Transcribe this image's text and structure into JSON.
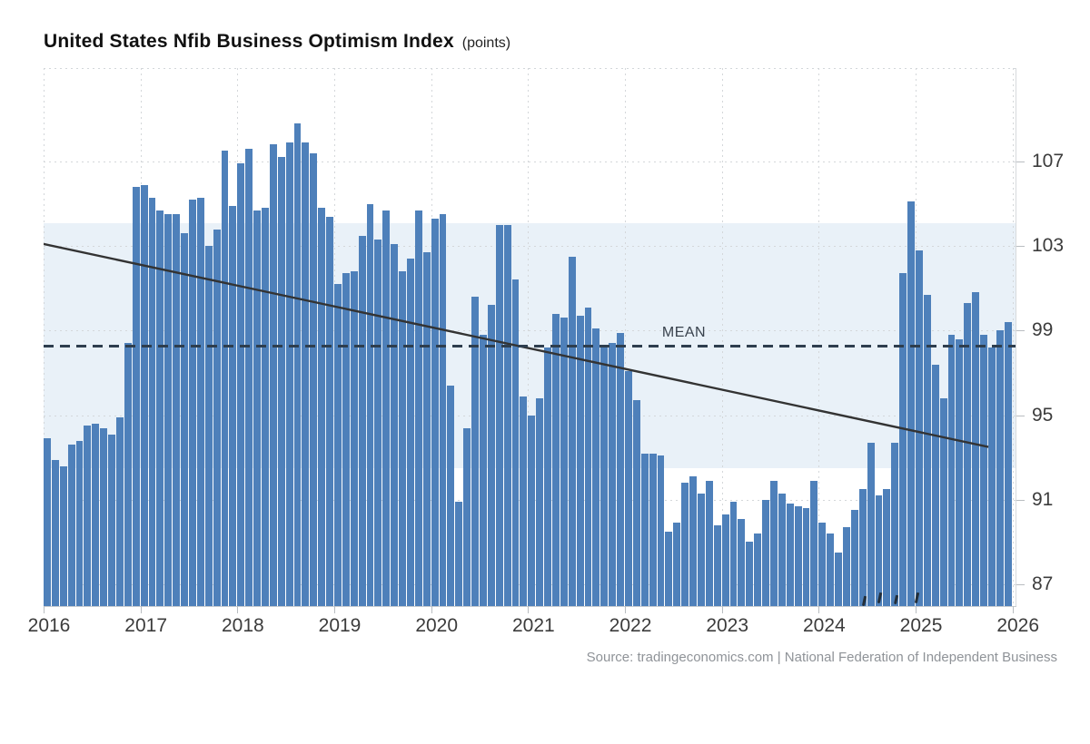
{
  "title": {
    "main": "United States Nfib Business Optimism Index",
    "unit": "(points)"
  },
  "source": "Source: tradingeconomics.com | National Federation of Independent Business",
  "mean_label": "MEAN",
  "colors": {
    "bar": "#4e80ba",
    "band": "#e9f1f8",
    "mean_line": "#2e3e4e",
    "trend_line": "#333333",
    "grid": "#d4d7da",
    "axis_text": "#3c3c3c",
    "title_text": "#111111",
    "source_text": "#8f9398"
  },
  "chart_data": {
    "type": "bar",
    "title": "United States Nfib Business Optimism Index (points)",
    "xlabel": "",
    "ylabel": "points",
    "frequency": "monthly",
    "start": "2016-01",
    "end": "2025-12",
    "ylim": [
      85.97,
      111.42
    ],
    "y_ticks": [
      107,
      103,
      99,
      95,
      91,
      87
    ],
    "x_tick_labels": [
      "2016",
      "2017",
      "2018",
      "2019",
      "2020",
      "2021",
      "2022",
      "2023",
      "2024",
      "2025",
      "2026"
    ],
    "grid": "dotted",
    "legend_position": "none",
    "mean": 98.3,
    "band": {
      "top": 104.1,
      "bottom": 92.5
    },
    "trend_line": {
      "start_month_index": 0,
      "start_value": 103.1,
      "end_month_index": 117,
      "end_value": 93.5
    },
    "values": [
      93.9,
      92.9,
      92.6,
      93.6,
      93.8,
      94.5,
      94.6,
      94.4,
      94.1,
      94.9,
      98.4,
      105.8,
      105.9,
      105.3,
      104.7,
      104.5,
      104.5,
      103.6,
      105.2,
      105.3,
      103.0,
      103.8,
      107.5,
      104.9,
      106.9,
      107.6,
      104.7,
      104.8,
      107.8,
      107.2,
      107.9,
      108.8,
      107.9,
      107.4,
      104.8,
      104.4,
      101.2,
      101.7,
      101.8,
      103.5,
      105.0,
      103.3,
      104.7,
      103.1,
      101.8,
      102.4,
      104.7,
      102.7,
      104.3,
      104.5,
      96.4,
      90.9,
      94.4,
      100.6,
      98.8,
      100.2,
      104.0,
      104.0,
      101.4,
      95.9,
      95.0,
      95.8,
      98.2,
      99.8,
      99.6,
      102.5,
      99.7,
      100.1,
      99.1,
      98.2,
      98.4,
      98.9,
      97.1,
      95.7,
      93.2,
      93.2,
      93.1,
      89.5,
      89.9,
      91.8,
      92.1,
      91.3,
      91.9,
      89.8,
      90.3,
      90.9,
      90.1,
      89.0,
      89.4,
      91.0,
      91.9,
      91.3,
      90.8,
      90.7,
      90.6,
      91.9,
      89.9,
      89.4,
      88.5,
      89.7,
      90.5,
      91.5,
      93.7,
      91.2,
      91.5,
      93.7,
      101.7,
      105.1,
      102.8,
      100.7,
      97.4,
      95.8,
      98.8,
      98.6,
      100.3,
      100.8,
      98.8,
      98.2,
      99.0,
      99.4
    ]
  }
}
